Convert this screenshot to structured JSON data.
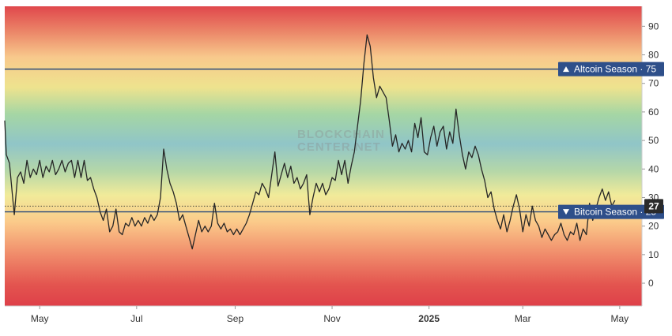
{
  "chart_data": {
    "type": "line",
    "title": "",
    "xlabel": "",
    "ylabel": "",
    "ylim": [
      -8,
      97
    ],
    "y_ticks": [
      0,
      10,
      20,
      30,
      40,
      50,
      60,
      70,
      80,
      90
    ],
    "y_tick_labels": [
      "0",
      "10",
      "20",
      "30",
      "40",
      "50",
      "60",
      "70",
      "80",
      "90"
    ],
    "x_ticks": [
      {
        "date": "2024-05-01",
        "label": "May",
        "bold": false
      },
      {
        "date": "2024-07-01",
        "label": "Jul",
        "bold": false
      },
      {
        "date": "2024-09-01",
        "label": "Sep",
        "bold": false
      },
      {
        "date": "2024-11-01",
        "label": "Nov",
        "bold": false
      },
      {
        "date": "2025-01-01",
        "label": "2025",
        "bold": true
      },
      {
        "date": "2025-03-01",
        "label": "Mar",
        "bold": false
      },
      {
        "date": "2025-05-01",
        "label": "May",
        "bold": false
      }
    ],
    "xlim": [
      "2024-04-09",
      "2025-05-15"
    ],
    "grid": false,
    "background": "red-yellow-green-blue gradient bands by index level",
    "reference_lines": [
      {
        "label": "Altcoin Season",
        "value": 75,
        "marker": "up-triangle",
        "text": "Altcoin Season · 75"
      },
      {
        "label": "Bitcoin Season",
        "value": 25,
        "marker": "down-triangle",
        "text": "Bitcoin Season · 25"
      }
    ],
    "current_value": {
      "value": 27,
      "label": "27"
    },
    "watermark": [
      "BLOCKCHAIN",
      "CENTER.NET"
    ],
    "series": [
      {
        "points": [
          [
            "2024-04-09",
            57
          ],
          [
            "2024-04-10",
            45
          ],
          [
            "2024-04-12",
            42
          ],
          [
            "2024-04-14",
            30
          ],
          [
            "2024-04-15",
            24
          ],
          [
            "2024-04-17",
            37
          ],
          [
            "2024-04-19",
            39
          ],
          [
            "2024-04-21",
            35
          ],
          [
            "2024-04-23",
            43
          ],
          [
            "2024-04-25",
            37
          ],
          [
            "2024-04-27",
            40
          ],
          [
            "2024-04-29",
            38
          ],
          [
            "2024-05-01",
            43
          ],
          [
            "2024-05-03",
            37
          ],
          [
            "2024-05-05",
            41
          ],
          [
            "2024-05-07",
            39
          ],
          [
            "2024-05-09",
            43
          ],
          [
            "2024-05-11",
            38
          ],
          [
            "2024-05-13",
            40
          ],
          [
            "2024-05-15",
            43
          ],
          [
            "2024-05-17",
            39
          ],
          [
            "2024-05-19",
            42
          ],
          [
            "2024-05-21",
            43
          ],
          [
            "2024-05-23",
            37
          ],
          [
            "2024-05-25",
            43
          ],
          [
            "2024-05-27",
            37
          ],
          [
            "2024-05-29",
            43
          ],
          [
            "2024-05-31",
            36
          ],
          [
            "2024-06-02",
            37
          ],
          [
            "2024-06-04",
            33
          ],
          [
            "2024-06-06",
            30
          ],
          [
            "2024-06-08",
            25
          ],
          [
            "2024-06-10",
            22
          ],
          [
            "2024-06-12",
            26
          ],
          [
            "2024-06-14",
            18
          ],
          [
            "2024-06-16",
            20
          ],
          [
            "2024-06-18",
            26
          ],
          [
            "2024-06-20",
            18
          ],
          [
            "2024-06-22",
            17
          ],
          [
            "2024-06-24",
            21
          ],
          [
            "2024-06-26",
            20
          ],
          [
            "2024-06-28",
            23
          ],
          [
            "2024-06-30",
            20
          ],
          [
            "2024-07-02",
            22
          ],
          [
            "2024-07-04",
            20
          ],
          [
            "2024-07-06",
            23
          ],
          [
            "2024-07-08",
            21
          ],
          [
            "2024-07-10",
            24
          ],
          [
            "2024-07-12",
            22
          ],
          [
            "2024-07-14",
            24
          ],
          [
            "2024-07-16",
            30
          ],
          [
            "2024-07-18",
            47
          ],
          [
            "2024-07-20",
            40
          ],
          [
            "2024-07-22",
            35
          ],
          [
            "2024-07-24",
            32
          ],
          [
            "2024-07-26",
            28
          ],
          [
            "2024-07-28",
            22
          ],
          [
            "2024-07-30",
            24
          ],
          [
            "2024-08-01",
            20
          ],
          [
            "2024-08-03",
            16
          ],
          [
            "2024-08-05",
            12
          ],
          [
            "2024-08-07",
            17
          ],
          [
            "2024-08-09",
            22
          ],
          [
            "2024-08-11",
            18
          ],
          [
            "2024-08-13",
            20
          ],
          [
            "2024-08-15",
            18
          ],
          [
            "2024-08-17",
            20
          ],
          [
            "2024-08-19",
            28
          ],
          [
            "2024-08-21",
            21
          ],
          [
            "2024-08-23",
            19
          ],
          [
            "2024-08-25",
            21
          ],
          [
            "2024-08-27",
            18
          ],
          [
            "2024-08-29",
            19
          ],
          [
            "2024-08-31",
            17
          ],
          [
            "2024-09-02",
            19
          ],
          [
            "2024-09-04",
            17
          ],
          [
            "2024-09-06",
            19
          ],
          [
            "2024-09-08",
            21
          ],
          [
            "2024-09-10",
            24
          ],
          [
            "2024-09-12",
            28
          ],
          [
            "2024-09-14",
            32
          ],
          [
            "2024-09-16",
            31
          ],
          [
            "2024-09-18",
            35
          ],
          [
            "2024-09-20",
            33
          ],
          [
            "2024-09-22",
            30
          ],
          [
            "2024-09-24",
            38
          ],
          [
            "2024-09-26",
            46
          ],
          [
            "2024-09-28",
            34
          ],
          [
            "2024-09-30",
            38
          ],
          [
            "2024-10-02",
            42
          ],
          [
            "2024-10-04",
            37
          ],
          [
            "2024-10-06",
            41
          ],
          [
            "2024-10-08",
            35
          ],
          [
            "2024-10-10",
            37
          ],
          [
            "2024-10-12",
            33
          ],
          [
            "2024-10-14",
            35
          ],
          [
            "2024-10-16",
            38
          ],
          [
            "2024-10-18",
            24
          ],
          [
            "2024-10-20",
            30
          ],
          [
            "2024-10-22",
            35
          ],
          [
            "2024-10-24",
            32
          ],
          [
            "2024-10-26",
            35
          ],
          [
            "2024-10-28",
            31
          ],
          [
            "2024-10-30",
            33
          ],
          [
            "2024-11-01",
            37
          ],
          [
            "2024-11-03",
            36
          ],
          [
            "2024-11-05",
            43
          ],
          [
            "2024-11-07",
            38
          ],
          [
            "2024-11-09",
            43
          ],
          [
            "2024-11-11",
            35
          ],
          [
            "2024-11-13",
            41
          ],
          [
            "2024-11-15",
            46
          ],
          [
            "2024-11-17",
            55
          ],
          [
            "2024-11-19",
            64
          ],
          [
            "2024-11-21",
            77
          ],
          [
            "2024-11-23",
            87
          ],
          [
            "2024-11-25",
            83
          ],
          [
            "2024-11-27",
            72
          ],
          [
            "2024-11-29",
            65
          ],
          [
            "2024-12-01",
            69
          ],
          [
            "2024-12-03",
            67
          ],
          [
            "2024-12-05",
            65
          ],
          [
            "2024-12-07",
            57
          ],
          [
            "2024-12-09",
            48
          ],
          [
            "2024-12-11",
            52
          ],
          [
            "2024-12-13",
            46
          ],
          [
            "2024-12-15",
            49
          ],
          [
            "2024-12-17",
            47
          ],
          [
            "2024-12-19",
            50
          ],
          [
            "2024-12-21",
            46
          ],
          [
            "2024-12-23",
            56
          ],
          [
            "2024-12-25",
            51
          ],
          [
            "2024-12-27",
            58
          ],
          [
            "2024-12-29",
            46
          ],
          [
            "2024-12-31",
            45
          ],
          [
            "2025-01-02",
            51
          ],
          [
            "2025-01-04",
            55
          ],
          [
            "2025-01-06",
            48
          ],
          [
            "2025-01-08",
            53
          ],
          [
            "2025-01-10",
            55
          ],
          [
            "2025-01-12",
            47
          ],
          [
            "2025-01-14",
            53
          ],
          [
            "2025-01-16",
            49
          ],
          [
            "2025-01-18",
            61
          ],
          [
            "2025-01-20",
            52
          ],
          [
            "2025-01-22",
            45
          ],
          [
            "2025-01-24",
            40
          ],
          [
            "2025-01-26",
            46
          ],
          [
            "2025-01-28",
            44
          ],
          [
            "2025-01-30",
            48
          ],
          [
            "2025-02-01",
            45
          ],
          [
            "2025-02-03",
            40
          ],
          [
            "2025-02-05",
            36
          ],
          [
            "2025-02-07",
            30
          ],
          [
            "2025-02-09",
            32
          ],
          [
            "2025-02-11",
            26
          ],
          [
            "2025-02-13",
            22
          ],
          [
            "2025-02-15",
            19
          ],
          [
            "2025-02-17",
            24
          ],
          [
            "2025-02-19",
            18
          ],
          [
            "2025-02-21",
            22
          ],
          [
            "2025-02-23",
            27
          ],
          [
            "2025-02-25",
            31
          ],
          [
            "2025-02-27",
            26
          ],
          [
            "2025-03-01",
            18
          ],
          [
            "2025-03-03",
            24
          ],
          [
            "2025-03-05",
            20
          ],
          [
            "2025-03-07",
            27
          ],
          [
            "2025-03-09",
            22
          ],
          [
            "2025-03-11",
            20
          ],
          [
            "2025-03-13",
            16
          ],
          [
            "2025-03-15",
            19
          ],
          [
            "2025-03-17",
            17
          ],
          [
            "2025-03-19",
            15
          ],
          [
            "2025-03-21",
            17
          ],
          [
            "2025-03-23",
            18
          ],
          [
            "2025-03-25",
            21
          ],
          [
            "2025-03-27",
            17
          ],
          [
            "2025-03-29",
            15
          ],
          [
            "2025-03-31",
            18
          ],
          [
            "2025-04-02",
            17
          ],
          [
            "2025-04-04",
            21
          ],
          [
            "2025-04-06",
            15
          ],
          [
            "2025-04-08",
            19
          ],
          [
            "2025-04-10",
            17
          ],
          [
            "2025-04-12",
            28
          ],
          [
            "2025-04-14",
            22
          ],
          [
            "2025-04-16",
            26
          ],
          [
            "2025-04-18",
            30
          ],
          [
            "2025-04-20",
            33
          ],
          [
            "2025-04-22",
            29
          ],
          [
            "2025-04-24",
            32
          ],
          [
            "2025-04-26",
            27
          ],
          [
            "2025-04-28",
            29
          ]
        ]
      }
    ]
  }
}
